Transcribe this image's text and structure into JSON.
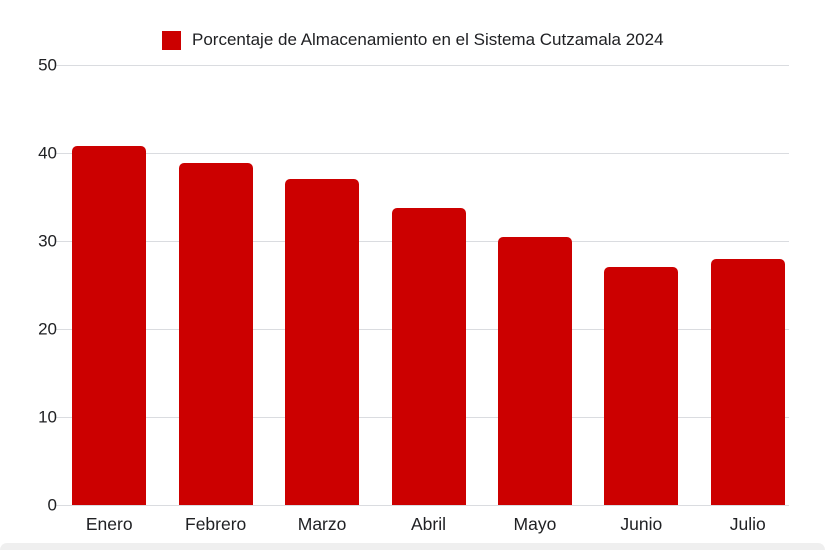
{
  "chart_data": {
    "type": "bar",
    "title": "",
    "legend": {
      "label": "Porcentaje de Almacenamiento en el Sistema Cutzamala 2024",
      "color": "#cc0000",
      "position": "top"
    },
    "categories": [
      "Enero",
      "Febrero",
      "Marzo",
      "Abril",
      "Mayo",
      "Junio",
      "Julio"
    ],
    "values": [
      40.8,
      38.9,
      37.0,
      33.7,
      30.5,
      27.0,
      27.9
    ],
    "xlabel": "",
    "ylabel": "",
    "ylim": [
      0,
      50
    ],
    "yticks": [
      0,
      10,
      20,
      30,
      40,
      50
    ],
    "grid": true,
    "bar_color": "#cc0000",
    "grid_color": "#dadce0",
    "text_color": "#202124",
    "background_color": "#ffffff"
  }
}
